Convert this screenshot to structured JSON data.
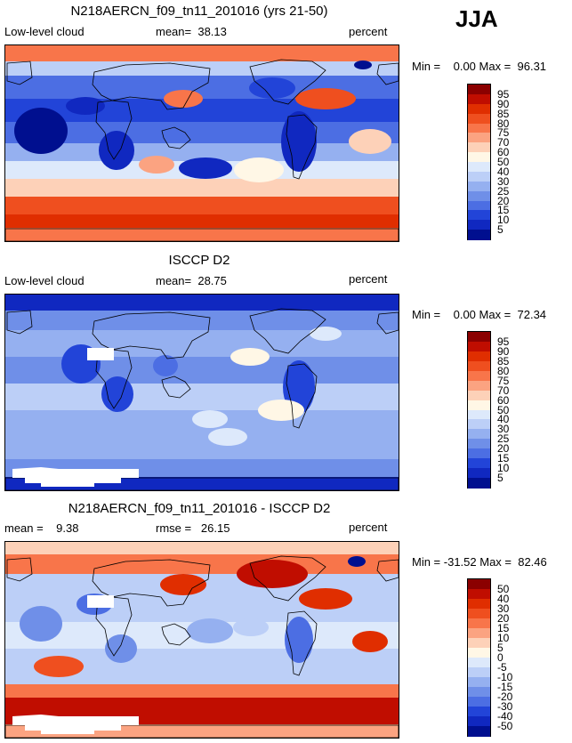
{
  "season": "JJA",
  "panels": [
    {
      "title": "N218AERCN_f09_tn11_201016 (yrs 21-50)",
      "left": "Low-level cloud",
      "center": "mean=  38.13",
      "right": "percent",
      "minmax": "Min =    0.00 Max =  96.31",
      "colorbar": "cloud",
      "map": "model"
    },
    {
      "title": "ISCCP D2",
      "left": "Low-level cloud",
      "center": "mean=  28.75",
      "right": "percent",
      "minmax": "Min =    0.00 Max =  72.34",
      "colorbar": "cloud",
      "map": "obs"
    },
    {
      "title": "N218AERCN_f09_tn11_201016 - ISCCP D2",
      "left": "mean =    9.38",
      "center": "rmse =   26.15",
      "right": "percent",
      "minmax": "Min = -31.52 Max =  82.46",
      "colorbar": "diff",
      "map": "diff"
    }
  ],
  "chart_data": {
    "type": "heatmap",
    "variable": "Low-level cloud",
    "units": "percent",
    "season": "JJA",
    "maps": [
      {
        "name": "N218AERCN_f09_tn11_201016 (yrs 21-50)",
        "mean": 38.13,
        "min": 0.0,
        "max": 96.31
      },
      {
        "name": "ISCCP D2",
        "mean": 28.75,
        "min": 0.0,
        "max": 72.34
      },
      {
        "name": "N218AERCN_f09_tn11_201016 - ISCCP D2",
        "mean": 9.38,
        "rmse": 26.15,
        "min": -31.52,
        "max": 82.46
      }
    ],
    "colorbars": {
      "cloud": {
        "levels": [
          "95",
          "90",
          "85",
          "80",
          "75",
          "70",
          "60",
          "50",
          "40",
          "30",
          "25",
          "20",
          "15",
          "10",
          "5"
        ],
        "colors": [
          "#8b0000",
          "#c00d00",
          "#e02e00",
          "#ef4f1f",
          "#f8754a",
          "#fba381",
          "#fdd1b8",
          "#fff7e6",
          "#dde9fb",
          "#bccff7",
          "#95b0f0",
          "#6f8fe8",
          "#4c6ee3",
          "#2244d8",
          "#1028c0",
          "#000f8f"
        ]
      },
      "diff": {
        "levels": [
          "50",
          "40",
          "30",
          "20",
          "15",
          "10",
          "5",
          "0",
          "-5",
          "-10",
          "-15",
          "-20",
          "-30",
          "-40",
          "-50"
        ],
        "colors": [
          "#8b0000",
          "#c00d00",
          "#e02e00",
          "#ef4f1f",
          "#f8754a",
          "#fba381",
          "#fdd1b8",
          "#fff7e6",
          "#dde9fb",
          "#bccff7",
          "#95b0f0",
          "#6f8fe8",
          "#4c6ee3",
          "#2244d8",
          "#1028c0",
          "#000f8f"
        ]
      }
    }
  }
}
